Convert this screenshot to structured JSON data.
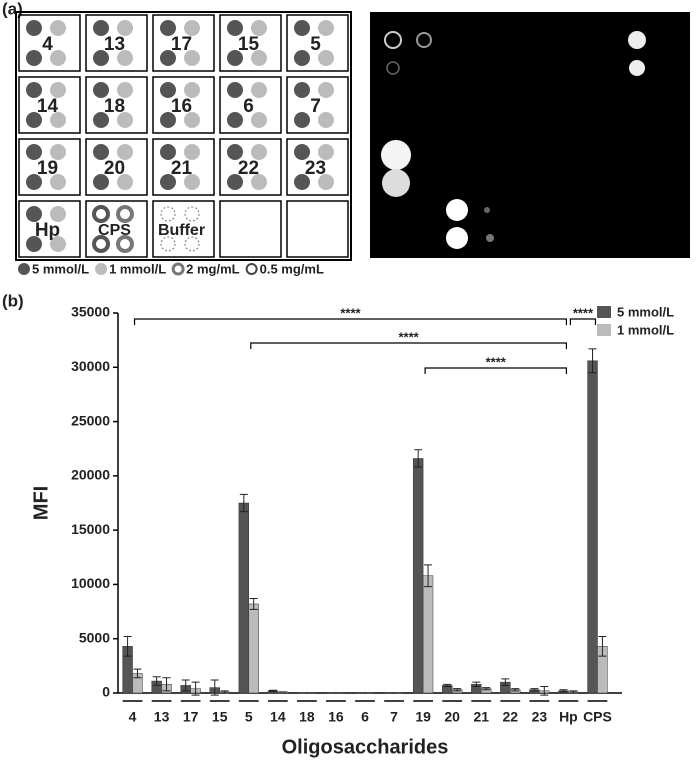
{
  "panel_a": {
    "panel_label": "(a)",
    "rows": [
      [
        "4",
        "13",
        "17",
        "15",
        "5"
      ],
      [
        "14",
        "18",
        "16",
        "6",
        "7"
      ],
      [
        "19",
        "20",
        "21",
        "22",
        "23"
      ],
      [
        "Hp",
        "CPS",
        "Buffer"
      ]
    ],
    "legend": [
      "5 mmol/L",
      "1 mmol/L",
      "2 mg/mL",
      "0.5 mg/mL"
    ],
    "legend_colors": [
      "#555555",
      "#bbbbbb",
      "#777777",
      "#ffffff"
    ]
  },
  "chart_data": {
    "type": "bar",
    "panel_label": "(b)",
    "x_label": "Oligosaccharides",
    "y_label": "MFI",
    "categories": [
      "4",
      "13",
      "17",
      "15",
      "5",
      "14",
      "18",
      "16",
      "6",
      "7",
      "19",
      "20",
      "21",
      "22",
      "23",
      "Hp",
      "CPS"
    ],
    "series": [
      {
        "name": "5 mmol/L",
        "color": "#555555",
        "values": [
          4300,
          1100,
          700,
          500,
          17500,
          200,
          0,
          0,
          0,
          0,
          21600,
          700,
          800,
          1000,
          300,
          200,
          30600
        ],
        "errors": [
          900,
          400,
          500,
          700,
          800,
          50,
          0,
          0,
          0,
          0,
          800,
          100,
          200,
          300,
          100,
          100,
          1100
        ]
      },
      {
        "name": "1 mmol/L",
        "color": "#bbbbbb",
        "values": [
          1800,
          800,
          400,
          100,
          8200,
          100,
          0,
          0,
          0,
          0,
          10800,
          300,
          400,
          300,
          200,
          100,
          4300
        ],
        "errors": [
          400,
          600,
          600,
          100,
          500,
          0,
          0,
          0,
          0,
          0,
          1000,
          100,
          100,
          100,
          400,
          100,
          900
        ]
      }
    ],
    "ylim": [
      0,
      35000
    ],
    "yticks": [
      0,
      5000,
      10000,
      15000,
      20000,
      25000,
      30000,
      35000
    ],
    "legend_position": "upper right",
    "annotations": [
      {
        "text": "****",
        "from": "4",
        "to": "Hp"
      },
      {
        "text": "****",
        "from": "5",
        "to": "Hp"
      },
      {
        "text": "****",
        "from": "19",
        "to": "Hp"
      },
      {
        "text": "****",
        "from": "Hp",
        "to": "CPS"
      }
    ]
  }
}
